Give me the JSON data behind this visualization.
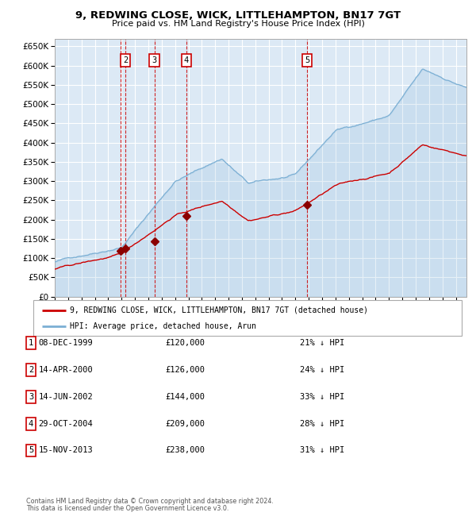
{
  "title": "9, REDWING CLOSE, WICK, LITTLEHAMPTON, BN17 7GT",
  "subtitle": "Price paid vs. HM Land Registry's House Price Index (HPI)",
  "legend_house": "9, REDWING CLOSE, WICK, LITTLEHAMPTON, BN17 7GT (detached house)",
  "legend_hpi": "HPI: Average price, detached house, Arun",
  "footer1": "Contains HM Land Registry data © Crown copyright and database right 2024.",
  "footer2": "This data is licensed under the Open Government Licence v3.0.",
  "sales": [
    {
      "num": 1,
      "date": "08-DEC-1999",
      "year": 1999.93,
      "price": 120000
    },
    {
      "num": 2,
      "date": "14-APR-2000",
      "year": 2000.28,
      "price": 126000
    },
    {
      "num": 3,
      "date": "14-JUN-2002",
      "year": 2002.45,
      "price": 144000
    },
    {
      "num": 4,
      "date": "29-OCT-2004",
      "year": 2004.83,
      "price": 209000
    },
    {
      "num": 5,
      "date": "15-NOV-2013",
      "year": 2013.87,
      "price": 238000
    }
  ],
  "sale_labels": [
    {
      "num": 2,
      "year": 2000.28
    },
    {
      "num": 3,
      "year": 2002.45
    },
    {
      "num": 4,
      "year": 2004.83
    },
    {
      "num": 5,
      "year": 2013.87
    }
  ],
  "table_rows": [
    {
      "num": 1,
      "date": "08-DEC-1999",
      "price": "£120,000",
      "pct": "21% ↓ HPI"
    },
    {
      "num": 2,
      "date": "14-APR-2000",
      "price": "£126,000",
      "pct": "24% ↓ HPI"
    },
    {
      "num": 3,
      "date": "14-JUN-2002",
      "price": "£144,000",
      "pct": "33% ↓ HPI"
    },
    {
      "num": 4,
      "date": "29-OCT-2004",
      "price": "£209,000",
      "pct": "28% ↓ HPI"
    },
    {
      "num": 5,
      "date": "15-NOV-2013",
      "price": "£238,000",
      "pct": "31% ↓ HPI"
    }
  ],
  "hpi_color": "#7bafd4",
  "price_color": "#cc0000",
  "marker_color": "#8b0000",
  "vline_color": "#cc0000",
  "bg_color": "#dce9f5",
  "grid_color": "#ffffff",
  "box_color": "#cc0000",
  "ylim": [
    0,
    670000
  ],
  "xlim_start": 1995.0,
  "xlim_end": 2025.8
}
